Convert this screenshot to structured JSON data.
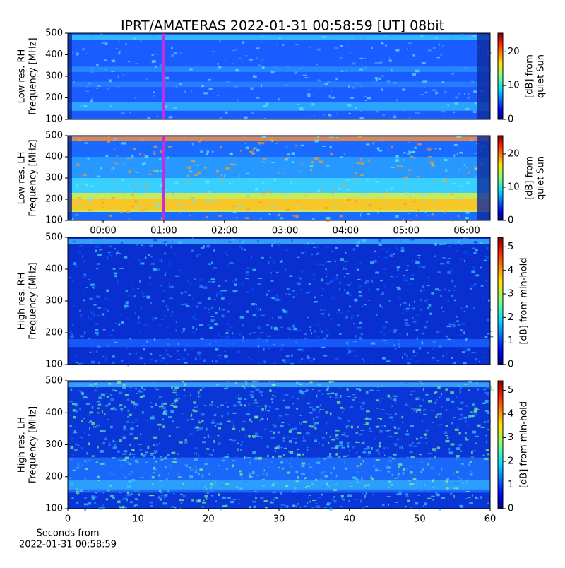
{
  "title": "IPRT/AMATERAS 2022-01-31 00:58:59 [UT]   08bit",
  "chart_data": [
    {
      "type": "heatmap",
      "ylabel": [
        "Low res. RH",
        "Frequency [MHz]"
      ],
      "ylim": [
        100,
        500
      ],
      "yticks": [
        100,
        200,
        300,
        400,
        500
      ],
      "colorbar_label": [
        "[dB] from",
        "quiet Sun"
      ],
      "clim": [
        0,
        25.5
      ],
      "cticks": [
        0,
        10,
        20
      ]
    },
    {
      "type": "heatmap",
      "ylabel": [
        "Low res. LH",
        "Frequency [MHz]"
      ],
      "ylim": [
        100,
        500
      ],
      "yticks": [
        100,
        200,
        300,
        400,
        500
      ],
      "xlim": [
        -35,
        383
      ],
      "xticks": [
        {
          "value": 0,
          "label": "00:00"
        },
        {
          "value": 60,
          "label": "01:00"
        },
        {
          "value": 120,
          "label": "02:00"
        },
        {
          "value": 180,
          "label": "03:00"
        },
        {
          "value": 240,
          "label": "04:00"
        },
        {
          "value": 300,
          "label": "05:00"
        },
        {
          "value": 360,
          "label": "06:00"
        }
      ],
      "colorbar_label": [
        "[dB] from",
        "quiet Sun"
      ],
      "clim": [
        0,
        25.5
      ],
      "cticks": [
        0,
        10,
        20
      ]
    },
    {
      "type": "heatmap",
      "ylabel": [
        "High res. RH",
        "Frequency [MHz]"
      ],
      "ylim": [
        100,
        500
      ],
      "yticks": [
        100,
        200,
        300,
        400,
        500
      ],
      "colorbar_label": [
        "[dB] from min-hold"
      ],
      "clim": [
        0,
        5.4
      ],
      "cticks": [
        0,
        1,
        2,
        3,
        4,
        5
      ]
    },
    {
      "type": "heatmap",
      "ylabel": [
        "High res. LH",
        "Frequency [MHz]"
      ],
      "ylim": [
        100,
        500
      ],
      "yticks": [
        100,
        200,
        300,
        400,
        500
      ],
      "xlim": [
        0,
        60
      ],
      "xticks": [
        0,
        10,
        20,
        30,
        40,
        50,
        60
      ],
      "xlabel": [
        "Seconds from",
        "2022-01-31 00:58:59"
      ],
      "colorbar_label": [
        "[dB] from min-hold"
      ],
      "clim": [
        0,
        5.4
      ],
      "cticks": [
        0,
        1,
        2,
        3,
        4,
        5
      ]
    }
  ]
}
